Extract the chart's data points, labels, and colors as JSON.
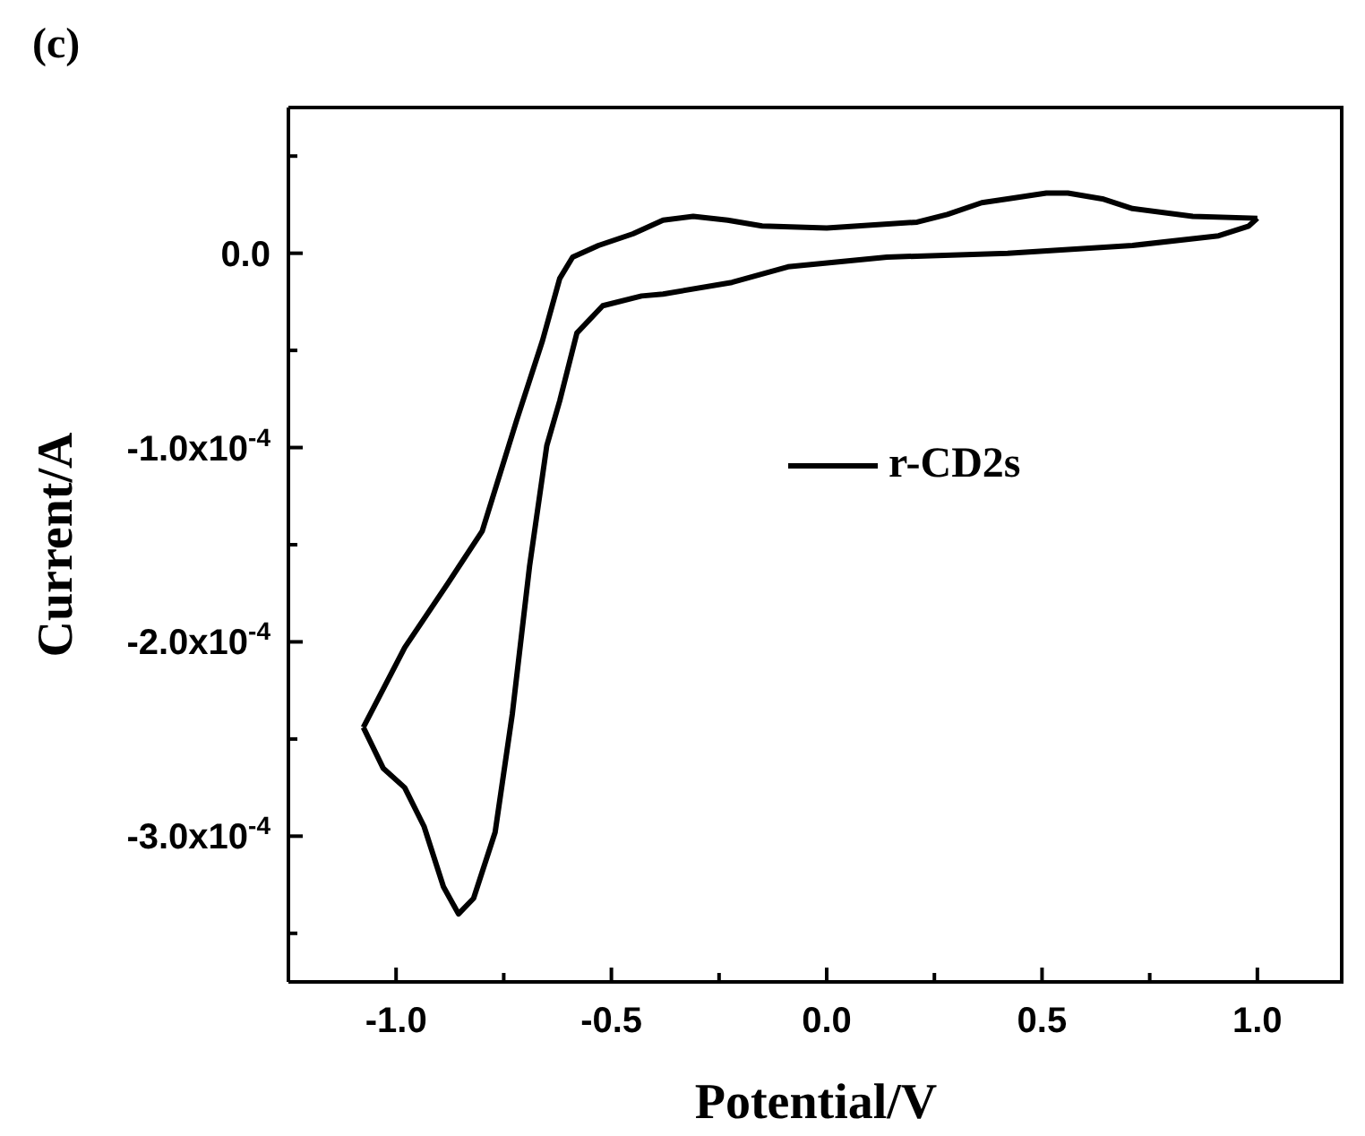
{
  "chart_data": {
    "type": "line",
    "title": "(c)",
    "xlabel": "Potential/V",
    "ylabel": "Current/A",
    "xlim": [
      -1.25,
      1.2
    ],
    "xticks": [
      {
        "value": -1.0,
        "label": "-1.0"
      },
      {
        "value": -0.75,
        "label": null
      },
      {
        "value": -0.5,
        "label": "-0.5"
      },
      {
        "value": -0.25,
        "label": null
      },
      {
        "value": 0,
        "label": "0.0"
      },
      {
        "value": 0.25,
        "label": null
      },
      {
        "value": 0.5,
        "label": "0.5"
      },
      {
        "value": 0.75,
        "label": null
      },
      {
        "value": 1.0,
        "label": "1.0"
      }
    ],
    "ylim": [
      -0.000375,
      7.5e-05
    ],
    "yticks": [
      {
        "value": 5e-05,
        "label": null
      },
      {
        "value": 0,
        "label": "0.0"
      },
      {
        "value": -5e-05,
        "label": null
      },
      {
        "value": -0.0001,
        "label": "-1.0x10$^{-4}$"
      },
      {
        "value": -0.00015,
        "label": null
      },
      {
        "value": -0.0002,
        "label": "-2.0x10$^{-4}$"
      },
      {
        "value": -0.00025,
        "label": null
      },
      {
        "value": -0.0003,
        "label": "-3.0x10$^{-4}$"
      },
      {
        "value": -0.00035,
        "label": null
      }
    ],
    "legend": "center",
    "marker": "none",
    "line_style": "solid",
    "series": [
      {
        "name": "r-CD2s",
        "color": "#000000",
        "x": [
          1.0,
          0.85,
          0.71,
          0.64,
          0.56,
          0.51,
          0.42,
          0.36,
          0.28,
          0.21,
          0.0,
          -0.15,
          -0.23,
          -0.31,
          -0.38,
          -0.45,
          -0.53,
          -0.59,
          -0.62,
          -0.66,
          -0.72,
          -0.8,
          -0.88,
          -0.98,
          -1.076
        ],
        "values": [
          1.8e-05,
          1.9e-05,
          2.3e-05,
          2.8e-05,
          3.1e-05,
          3.1e-05,
          2.8e-05,
          2.6e-05,
          2e-05,
          1.6e-05,
          1.3e-05,
          1.4e-05,
          1.7e-05,
          1.9e-05,
          1.7e-05,
          1e-05,
          4e-06,
          -2e-06,
          -1.3e-05,
          -4.5e-05,
          -8.6e-05,
          -0.000143,
          -0.00017,
          -0.000203,
          -0.000244
        ]
      },
      {
        "color": "#000000",
        "x": [
          -1.076,
          -1.03,
          -0.98,
          -0.935,
          -0.89,
          -0.855,
          -0.82,
          -0.77,
          -0.73,
          -0.69,
          -0.65,
          -0.62,
          -0.58,
          -0.52,
          -0.43,
          -0.38,
          -0.22,
          -0.09,
          0.14,
          0.42,
          0.71,
          0.91,
          0.98,
          1.0
        ],
        "values": [
          -0.000244,
          -0.000265,
          -0.000275,
          -0.000295,
          -0.000326,
          -0.00034,
          -0.000332,
          -0.000298,
          -0.000237,
          -0.000161,
          -9.9e-05,
          -7.6e-05,
          -4.1e-05,
          -2.7e-05,
          -2.2e-05,
          -2.1e-05,
          -1.5e-05,
          -7e-06,
          -2e-06,
          0.0,
          4e-06,
          9e-06,
          1.4e-05,
          1.8e-05
        ]
      }
    ]
  }
}
